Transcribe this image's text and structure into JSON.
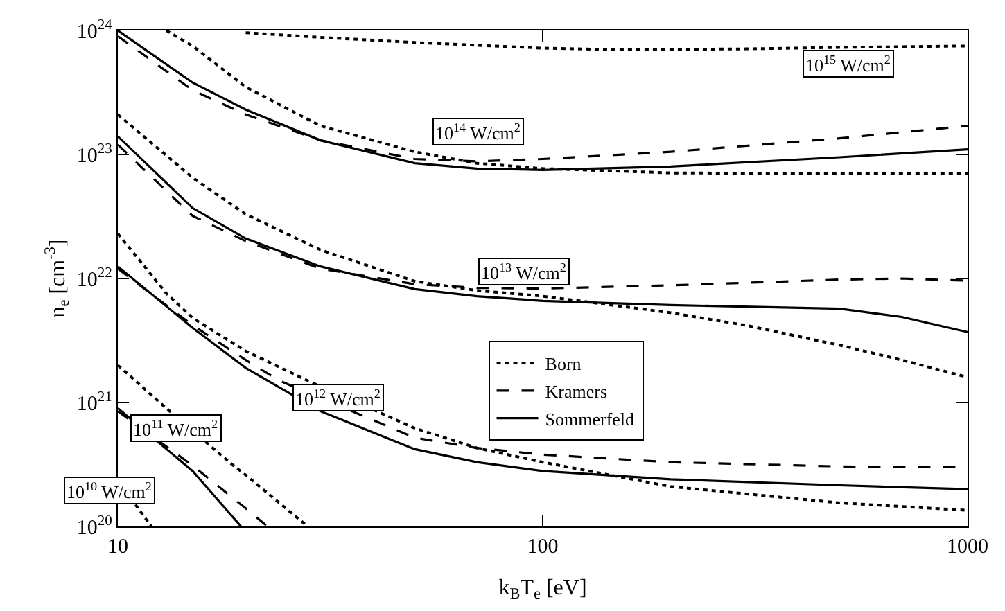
{
  "chart_data": {
    "type": "line",
    "xlabel": "k$_{B}$T$_{e}$ [eV]",
    "ylabel": "n$_{e}$ [cm$^{-3}$]",
    "log": "xy",
    "xlim": [
      10,
      1000
    ],
    "ylim": [
      1e+20,
      1e+24
    ],
    "xticks": [
      10,
      100,
      1000
    ],
    "yticks": [
      {
        "value": 1e+20,
        "label": "10$^{20}$"
      },
      {
        "value": 1e+21,
        "label": "10$^{21}$"
      },
      {
        "value": 1e+22,
        "label": "10$^{22}$"
      },
      {
        "value": 1e+23,
        "label": "10$^{23}$"
      },
      {
        "value": 1e+24,
        "label": "10$^{24}$"
      }
    ],
    "grid": false,
    "legend": "center",
    "marker": "none",
    "series": [
      {
        "name": "Born",
        "color": "#000000",
        "line_style": "dotted",
        "x": [
          20,
          30,
          50,
          100,
          150,
          300,
          500,
          1000
        ],
        "values": [
          9.6e+23,
          8.8e+23,
          8e+23,
          7.2e+23,
          7e+23,
          7.1e+23,
          7.3e+23,
          7.5e+23
        ]
      },
      {
        "name": "Kramers",
        "color": "#000000",
        "line_style": "dashed",
        "x": [
          10,
          15,
          20,
          30,
          50,
          70,
          100,
          200,
          500,
          1000
        ],
        "values": [
          9e+23,
          3.3e+23,
          2.1e+23,
          1.3e+23,
          9.2e+22,
          8.8e+22,
          9.2e+22,
          1.05e+23,
          1.35e+23,
          1.7e+23
        ]
      },
      {
        "name": "Sommerfeld",
        "color": "#000000",
        "line_style": "solid",
        "x": [
          10,
          15,
          20,
          30,
          50,
          70,
          100,
          200,
          500,
          1000
        ],
        "values": [
          1e+24,
          3.8e+23,
          2.3e+23,
          1.3e+23,
          8.5e+22,
          7.7e+22,
          7.5e+22,
          8e+22,
          9.5e+22,
          1.1e+23
        ]
      },
      {
        "color": "#000000",
        "line_style": "dotted",
        "x": [
          13,
          15,
          20,
          30,
          50,
          70,
          100,
          200,
          500,
          1000
        ],
        "values": [
          1e+24,
          7.5e+23,
          3.5e+23,
          1.7e+23,
          1.05e+23,
          8.5e+22,
          7.7e+22,
          7.1e+22,
          7e+22,
          7e+22
        ]
      },
      {
        "color": "#000000",
        "line_style": "dotted",
        "x": [
          10,
          15,
          20,
          30,
          50,
          70,
          100,
          200,
          300,
          500,
          700,
          1000
        ],
        "values": [
          2.1e+23,
          6.5e+22,
          3.3e+22,
          1.7e+22,
          9.5e+21,
          8e+21,
          7.2e+21,
          5.3e+21,
          4.2e+21,
          2.9e+21,
          2.2e+21,
          1.6e+21
        ]
      },
      {
        "color": "#000000",
        "line_style": "dashed",
        "x": [
          10,
          15,
          20,
          30,
          50,
          70,
          100,
          200,
          500,
          700,
          1000
        ],
        "values": [
          1.2e+23,
          3.2e+22,
          2e+22,
          1.2e+22,
          9e+21,
          8.4e+21,
          8.3e+21,
          8.8e+21,
          9.8e+21,
          1e+22,
          9.6e+21
        ]
      },
      {
        "color": "#000000",
        "line_style": "solid",
        "x": [
          10,
          15,
          20,
          30,
          50,
          70,
          100,
          200,
          500,
          700,
          1000
        ],
        "values": [
          1.4e+23,
          3.7e+22,
          2.1e+22,
          1.25e+22,
          8.2e+21,
          7.2e+21,
          6.6e+21,
          6.1e+21,
          5.7e+21,
          4.9e+21,
          3.7e+21
        ]
      },
      {
        "color": "#000000",
        "line_style": "dotted",
        "x": [
          10,
          13,
          15,
          20,
          28,
          50,
          70,
          100,
          200,
          500,
          1000
        ],
        "values": [
          2.3e+22,
          7.6e+21,
          4.8e+21,
          2.6e+21,
          1.5e+21,
          6.2e+20,
          4.3e+20,
          3.3e+20,
          2.1e+20,
          1.55e+20,
          1.35e+20
        ]
      },
      {
        "color": "#000000",
        "line_style": "dashed",
        "x": [
          10,
          15,
          20,
          24,
          50,
          70,
          100,
          200,
          500,
          1000
        ],
        "values": [
          1.2e+22,
          4.2e+21,
          2.2e+21,
          1.5e+21,
          5.2e+20,
          4.3e+20,
          3.8e+20,
          3.3e+20,
          3.05e+20,
          3e+20
        ]
      },
      {
        "color": "#000000",
        "line_style": "solid",
        "x": [
          10,
          15,
          20,
          30,
          50,
          70,
          100,
          200,
          500,
          1000
        ],
        "values": [
          1.25e+22,
          4e+21,
          1.9e+21,
          8.5e+20,
          4.2e+20,
          3.3e+20,
          2.8e+20,
          2.4e+20,
          2.15e+20,
          2e+20
        ]
      },
      {
        "color": "#000000",
        "line_style": "dotted",
        "x": [
          10,
          13,
          18.5,
          20,
          28
        ],
        "values": [
          2e+21,
          9e+20,
          3.2e+20,
          2.6e+20,
          1e+20
        ]
      },
      {
        "color": "#000000",
        "line_style": "dashed",
        "x": [
          10,
          15,
          20,
          22.5
        ],
        "values": [
          8.5e+20,
          3.1e+20,
          1.4e+20,
          1e+20
        ]
      },
      {
        "color": "#000000",
        "line_style": "solid",
        "x": [
          10,
          15,
          19.5
        ],
        "values": [
          9e+20,
          2.8e+20,
          1e+20
        ]
      },
      {
        "color": "#000000",
        "line_style": "dotted",
        "x": [
          11,
          12
        ],
        "values": [
          1.5e+20,
          1e+20
        ]
      }
    ],
    "annotations": [
      "10$^{15}$ W/cm$^{2}$",
      "10$^{14}$ W/cm$^{2}$",
      "10$^{13}$ W/cm$^{2}$",
      "10$^{12}$ W/cm$^{2}$",
      "10$^{11}$ W/cm$^{2}$",
      "10$^{10}$ W/cm$^{2}$"
    ]
  }
}
